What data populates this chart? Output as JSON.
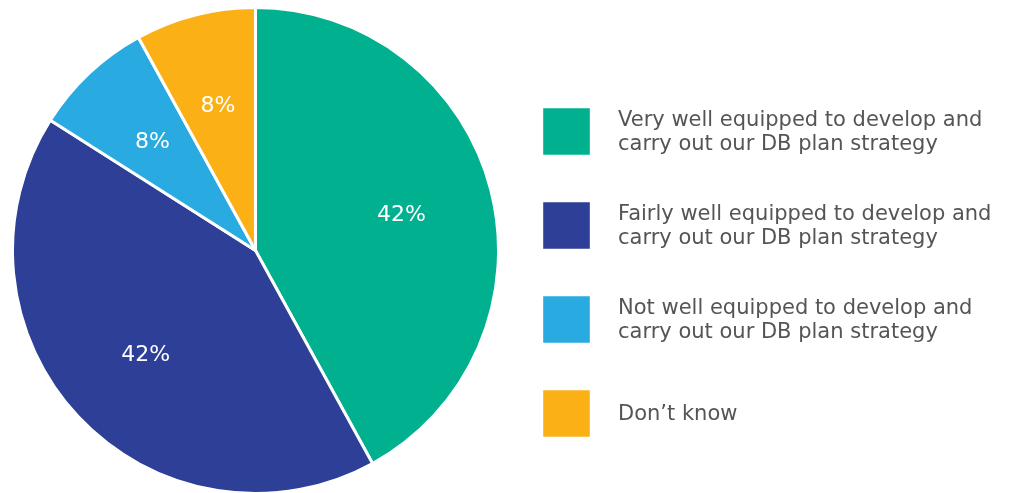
{
  "chart_data": {
    "type": "pie",
    "categories": [
      "Very well equipped to develop and carry out our DB plan strategy",
      "Fairly well equipped to develop and carry out our DB plan strategy",
      "Not well equipped to develop and carry out our DB plan strategy",
      "Don’t know"
    ],
    "values": [
      42,
      42,
      8,
      8
    ],
    "colors": [
      "#00b08f",
      "#2d3f96",
      "#29abe2",
      "#fbb116"
    ],
    "value_labels": [
      "42%",
      "42%",
      "8%",
      "8%"
    ],
    "legend": "right"
  }
}
